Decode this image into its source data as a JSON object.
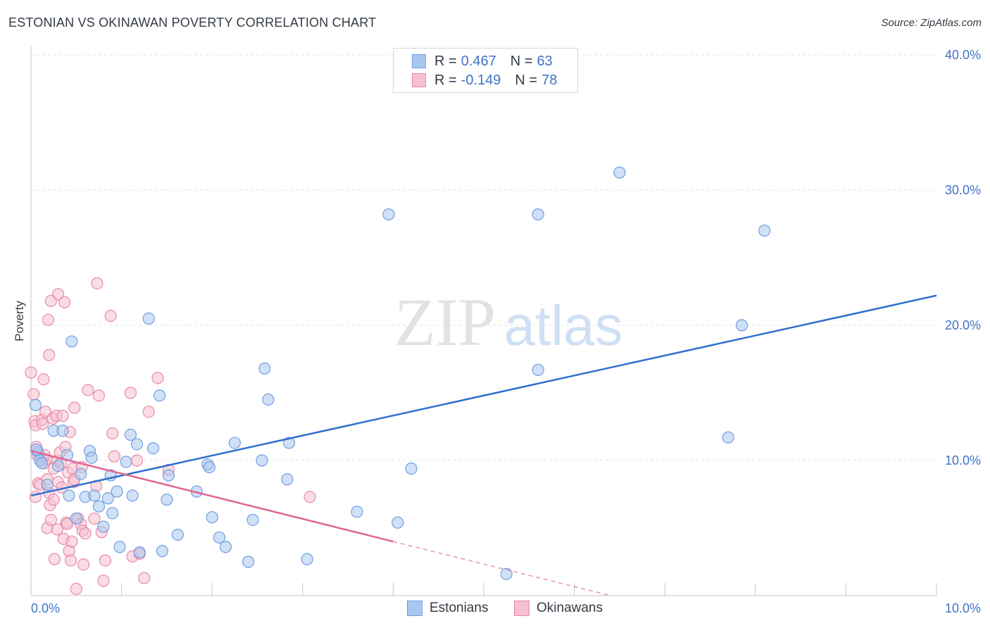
{
  "header": {
    "title": "ESTONIAN VS OKINAWAN POVERTY CORRELATION CHART",
    "source": "Source: ZipAtlas.com"
  },
  "watermark": {
    "zip": "ZIP",
    "atlas": "atlas"
  },
  "legend": {
    "rows": [
      {
        "r_label": "R =",
        "r_value": "0.467",
        "n_label": "N =",
        "n_value": "63",
        "color": "#a9c7ee",
        "border": "#6f9fe0"
      },
      {
        "r_label": "R =",
        "r_value": "-0.149",
        "n_label": "N =",
        "n_value": "78",
        "color": "#f6c0d0",
        "border": "#e88aa7"
      }
    ]
  },
  "bottom_legend": [
    {
      "label": "Estonians",
      "color": "#a9c7ee",
      "border": "#6f9fe0"
    },
    {
      "label": "Okinawans",
      "color": "#f6c0d0",
      "border": "#e88aa7"
    }
  ],
  "chart_data": {
    "type": "scatter",
    "title": "ESTONIAN VS OKINAWAN POVERTY CORRELATION CHART",
    "xlabel": "",
    "ylabel": "Poverty",
    "xlim": [
      0,
      10
    ],
    "ylim": [
      0,
      40
    ],
    "x_tick_labels": [
      "0.0%",
      "10.0%"
    ],
    "y_ticks": [
      10,
      20,
      30,
      40
    ],
    "y_tick_labels": [
      "10.0%",
      "20.0%",
      "30.0%",
      "40.0%"
    ],
    "grid": true,
    "legend_position": "top-center",
    "series": [
      {
        "name": "Estonians",
        "color": "#6f9fe0",
        "fill": "#a9c7ee",
        "trend": {
          "x": [
            0,
            10
          ],
          "y": [
            7.4,
            22.2
          ]
        },
        "points": [
          [
            0.05,
            14.1
          ],
          [
            0.08,
            10.6
          ],
          [
            0.1,
            10.0
          ],
          [
            0.12,
            9.8
          ],
          [
            0.18,
            8.2
          ],
          [
            0.25,
            12.2
          ],
          [
            0.3,
            9.6
          ],
          [
            0.35,
            12.2
          ],
          [
            0.4,
            10.4
          ],
          [
            0.42,
            7.4
          ],
          [
            0.45,
            18.8
          ],
          [
            0.5,
            5.7
          ],
          [
            0.55,
            9.0
          ],
          [
            0.6,
            7.3
          ],
          [
            0.65,
            10.7
          ],
          [
            0.67,
            10.2
          ],
          [
            0.7,
            7.4
          ],
          [
            0.75,
            6.6
          ],
          [
            0.8,
            5.1
          ],
          [
            0.85,
            7.2
          ],
          [
            0.88,
            8.9
          ],
          [
            0.9,
            6.1
          ],
          [
            0.95,
            7.7
          ],
          [
            0.98,
            3.6
          ],
          [
            1.05,
            9.9
          ],
          [
            1.1,
            11.9
          ],
          [
            1.12,
            7.4
          ],
          [
            1.17,
            11.2
          ],
          [
            1.2,
            3.2
          ],
          [
            1.3,
            20.5
          ],
          [
            1.35,
            10.9
          ],
          [
            1.42,
            14.8
          ],
          [
            1.45,
            3.3
          ],
          [
            1.5,
            7.1
          ],
          [
            1.52,
            8.9
          ],
          [
            1.62,
            4.5
          ],
          [
            1.83,
            7.7
          ],
          [
            1.95,
            9.7
          ],
          [
            1.97,
            9.5
          ],
          [
            2.0,
            5.8
          ],
          [
            2.08,
            4.3
          ],
          [
            2.15,
            3.6
          ],
          [
            2.25,
            11.3
          ],
          [
            2.4,
            2.5
          ],
          [
            2.45,
            5.6
          ],
          [
            2.55,
            10.0
          ],
          [
            2.58,
            16.8
          ],
          [
            2.62,
            14.5
          ],
          [
            2.83,
            8.6
          ],
          [
            2.85,
            11.3
          ],
          [
            3.05,
            2.7
          ],
          [
            3.6,
            6.2
          ],
          [
            3.95,
            28.2
          ],
          [
            4.05,
            5.4
          ],
          [
            4.2,
            9.4
          ],
          [
            5.25,
            1.6
          ],
          [
            5.6,
            28.2
          ],
          [
            5.6,
            16.7
          ],
          [
            6.5,
            31.3
          ],
          [
            7.7,
            11.7
          ],
          [
            7.85,
            20.0
          ],
          [
            8.1,
            27.0
          ],
          [
            0.06,
            10.8
          ]
        ]
      },
      {
        "name": "Okinawans",
        "color": "#e88aa7",
        "fill": "#f6c0d0",
        "trend": {
          "x": [
            0,
            4
          ],
          "y": [
            10.7,
            4.0
          ]
        },
        "trend_dashed": {
          "x": [
            4,
            10
          ],
          "y": [
            4.0,
            -6.0
          ]
        },
        "points": [
          [
            0.0,
            16.5
          ],
          [
            0.03,
            14.9
          ],
          [
            0.04,
            12.9
          ],
          [
            0.05,
            12.6
          ],
          [
            0.06,
            11.0
          ],
          [
            0.07,
            10.4
          ],
          [
            0.08,
            8.3
          ],
          [
            0.1,
            8.2
          ],
          [
            0.12,
            13.0
          ],
          [
            0.13,
            12.7
          ],
          [
            0.14,
            16.0
          ],
          [
            0.15,
            9.8
          ],
          [
            0.16,
            13.6
          ],
          [
            0.17,
            10.1
          ],
          [
            0.18,
            8.6
          ],
          [
            0.18,
            5.0
          ],
          [
            0.19,
            20.4
          ],
          [
            0.2,
            17.8
          ],
          [
            0.2,
            7.6
          ],
          [
            0.21,
            6.7
          ],
          [
            0.22,
            21.8
          ],
          [
            0.22,
            5.6
          ],
          [
            0.24,
            13.1
          ],
          [
            0.25,
            9.4
          ],
          [
            0.25,
            7.1
          ],
          [
            0.26,
            2.7
          ],
          [
            0.28,
            13.3
          ],
          [
            0.29,
            10.0
          ],
          [
            0.29,
            4.9
          ],
          [
            0.3,
            22.3
          ],
          [
            0.3,
            8.4
          ],
          [
            0.32,
            10.6
          ],
          [
            0.33,
            9.8
          ],
          [
            0.34,
            8.0
          ],
          [
            0.35,
            13.3
          ],
          [
            0.36,
            4.2
          ],
          [
            0.37,
            21.7
          ],
          [
            0.38,
            11.0
          ],
          [
            0.39,
            5.4
          ],
          [
            0.4,
            5.3
          ],
          [
            0.41,
            9.1
          ],
          [
            0.42,
            3.3
          ],
          [
            0.43,
            12.1
          ],
          [
            0.44,
            2.6
          ],
          [
            0.45,
            4.0
          ],
          [
            0.46,
            9.4
          ],
          [
            0.47,
            8.4
          ],
          [
            0.48,
            8.6
          ],
          [
            0.48,
            13.9
          ],
          [
            0.5,
            0.5
          ],
          [
            0.52,
            5.7
          ],
          [
            0.55,
            5.3
          ],
          [
            0.56,
            9.5
          ],
          [
            0.57,
            4.8
          ],
          [
            0.58,
            2.3
          ],
          [
            0.6,
            4.6
          ],
          [
            0.63,
            15.2
          ],
          [
            0.7,
            5.7
          ],
          [
            0.72,
            8.1
          ],
          [
            0.73,
            23.1
          ],
          [
            0.75,
            14.8
          ],
          [
            0.78,
            4.7
          ],
          [
            0.8,
            1.1
          ],
          [
            0.82,
            2.6
          ],
          [
            0.88,
            20.7
          ],
          [
            0.9,
            12.0
          ],
          [
            0.92,
            10.3
          ],
          [
            1.1,
            15.0
          ],
          [
            1.12,
            2.9
          ],
          [
            1.17,
            10.0
          ],
          [
            1.2,
            3.1
          ],
          [
            1.25,
            1.3
          ],
          [
            1.3,
            13.6
          ],
          [
            1.4,
            16.1
          ],
          [
            1.52,
            9.3
          ],
          [
            3.08,
            7.3
          ],
          [
            0.05,
            7.3
          ],
          [
            0.15,
            10.4
          ]
        ]
      }
    ]
  }
}
